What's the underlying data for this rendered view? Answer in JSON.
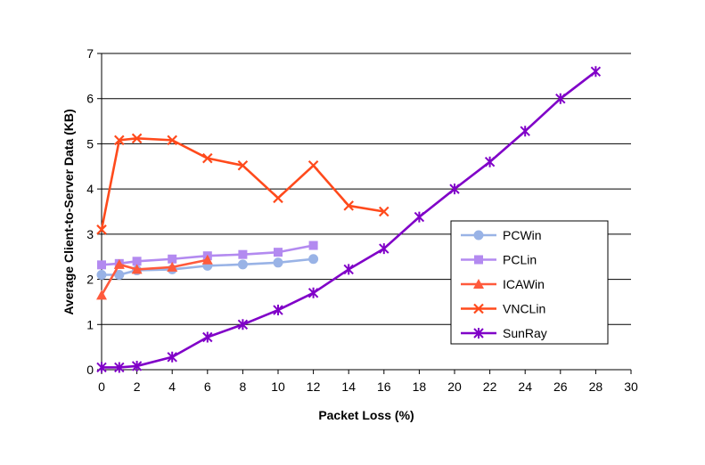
{
  "chart_data": {
    "type": "line",
    "title": "",
    "xlabel": "Packet Loss (%)",
    "ylabel": "Average Client-to-Server Data (KB)",
    "xlim": [
      0,
      30
    ],
    "ylim": [
      0,
      7
    ],
    "x_ticks": [
      0,
      2,
      4,
      6,
      8,
      10,
      12,
      14,
      16,
      18,
      20,
      22,
      24,
      26,
      28,
      30
    ],
    "y_ticks": [
      0,
      1,
      2,
      3,
      4,
      5,
      6,
      7
    ],
    "grid": "horizontal",
    "legend_position": "right",
    "series": [
      {
        "name": "PCWin",
        "color": "#99b3e6",
        "marker": "circle",
        "x": [
          0,
          1,
          2,
          4,
          6,
          8,
          10,
          12
        ],
        "y": [
          2.1,
          2.1,
          2.2,
          2.22,
          2.3,
          2.33,
          2.37,
          2.45
        ]
      },
      {
        "name": "PCLin",
        "color": "#b38af0",
        "marker": "square",
        "x": [
          0,
          1,
          2,
          4,
          6,
          8,
          10,
          12
        ],
        "y": [
          2.32,
          2.35,
          2.4,
          2.45,
          2.52,
          2.55,
          2.6,
          2.75
        ]
      },
      {
        "name": "ICAWin",
        "color": "#ff5a3c",
        "marker": "triangle",
        "x": [
          0,
          1,
          2,
          4,
          6
        ],
        "y": [
          1.65,
          2.33,
          2.22,
          2.27,
          2.43
        ]
      },
      {
        "name": "VNCLin",
        "color": "#ff4a1c",
        "marker": "x",
        "x": [
          0,
          1,
          2,
          4,
          6,
          8,
          10,
          12,
          14,
          16
        ],
        "y": [
          3.1,
          5.08,
          5.12,
          5.08,
          4.68,
          4.52,
          3.8,
          4.52,
          3.63,
          3.5
        ]
      },
      {
        "name": "SunRay",
        "color": "#8000c8",
        "marker": "star",
        "x": [
          0,
          1,
          2,
          4,
          6,
          8,
          10,
          12,
          14,
          16,
          18,
          20,
          22,
          24,
          26,
          28
        ],
        "y": [
          0.05,
          0.05,
          0.08,
          0.28,
          0.72,
          1.0,
          1.32,
          1.7,
          2.22,
          2.68,
          3.38,
          4.0,
          4.6,
          5.28,
          6.0,
          6.6
        ]
      }
    ]
  }
}
